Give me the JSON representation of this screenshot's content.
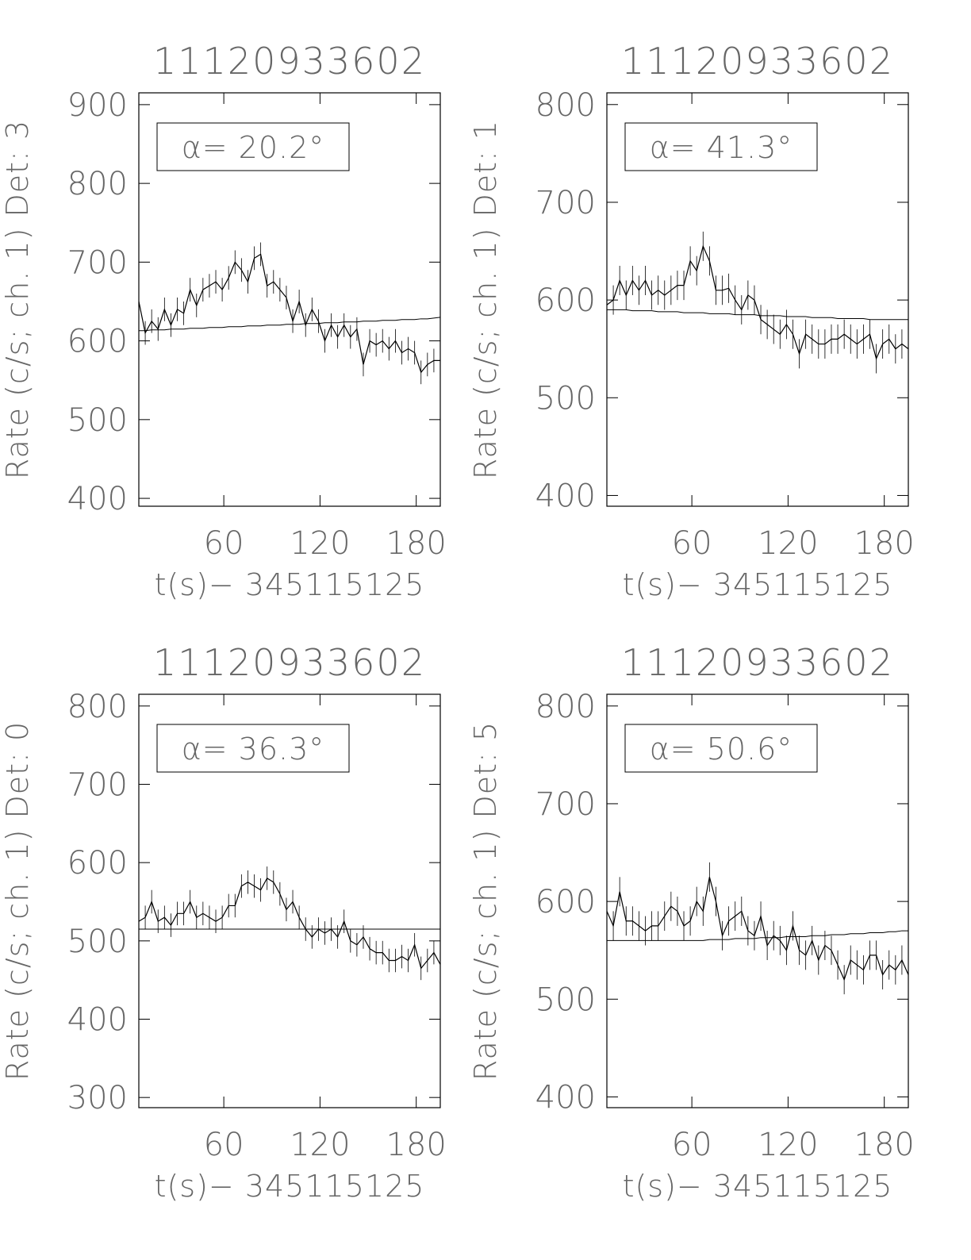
{
  "chart_data": [
    {
      "type": "line",
      "title": "11120933602",
      "xlabel": "t(s)− 345115125",
      "ylabel": "Rate (c/s; ch. 1) Det: 3",
      "annotation": "α= 20.2°",
      "color": "#000000",
      "x": [
        7,
        11,
        15,
        19,
        23,
        27,
        31,
        35,
        39,
        43,
        47,
        51,
        55,
        59,
        63,
        67,
        71,
        75,
        79,
        83,
        87,
        91,
        95,
        99,
        103,
        107,
        111,
        115,
        119,
        123,
        127,
        131,
        135,
        139,
        143,
        147,
        151,
        155,
        159,
        163,
        167,
        171,
        175,
        179,
        183,
        187,
        191,
        195
      ],
      "values": [
        650,
        610,
        625,
        615,
        640,
        620,
        640,
        635,
        665,
        645,
        665,
        670,
        675,
        665,
        680,
        700,
        690,
        675,
        705,
        710,
        670,
        675,
        665,
        655,
        625,
        650,
        620,
        640,
        625,
        600,
        620,
        605,
        620,
        605,
        615,
        570,
        600,
        595,
        600,
        590,
        600,
        585,
        590,
        585,
        560,
        570,
        575,
        575
      ],
      "error": 15,
      "fit": [
        613,
        613,
        614,
        614,
        614,
        615,
        615,
        615,
        616,
        616,
        616,
        617,
        617,
        617,
        618,
        618,
        618,
        619,
        619,
        619,
        620,
        620,
        620,
        621,
        621,
        621,
        622,
        622,
        622,
        623,
        623,
        623,
        624,
        624,
        624,
        625,
        625,
        625,
        626,
        626,
        626,
        627,
        627,
        627,
        628,
        628,
        629,
        630
      ],
      "xlim": [
        7,
        195
      ],
      "ylim": [
        390,
        915
      ],
      "xticks": [
        60,
        120,
        180
      ],
      "yticks": [
        400,
        500,
        600,
        700,
        800,
        900
      ]
    },
    {
      "type": "line",
      "title": "11120933602",
      "xlabel": "t(s)− 345115125",
      "ylabel": "Rate (c/s; ch. 1) Det: 1",
      "annotation": "α= 41.3°",
      "color": "#000000",
      "x": [
        7,
        11,
        15,
        19,
        23,
        27,
        31,
        35,
        39,
        43,
        47,
        51,
        55,
        59,
        63,
        67,
        71,
        75,
        79,
        83,
        87,
        91,
        95,
        99,
        103,
        107,
        111,
        115,
        119,
        123,
        127,
        131,
        135,
        139,
        143,
        147,
        151,
        155,
        159,
        163,
        167,
        171,
        175,
        179,
        183,
        187,
        191,
        195
      ],
      "values": [
        595,
        600,
        620,
        605,
        620,
        610,
        620,
        605,
        610,
        605,
        610,
        615,
        615,
        640,
        630,
        655,
        640,
        610,
        610,
        612,
        600,
        590,
        605,
        600,
        580,
        575,
        570,
        565,
        575,
        565,
        545,
        565,
        560,
        555,
        555,
        560,
        560,
        565,
        560,
        555,
        560,
        565,
        540,
        555,
        560,
        550,
        555,
        550
      ],
      "error": 15,
      "fit": [
        590,
        590,
        590,
        590,
        589,
        589,
        589,
        589,
        588,
        588,
        588,
        588,
        587,
        587,
        587,
        587,
        586,
        586,
        586,
        586,
        585,
        585,
        585,
        585,
        584,
        584,
        584,
        584,
        583,
        583,
        583,
        583,
        582,
        582,
        582,
        582,
        581,
        581,
        581,
        581,
        581,
        580,
        580,
        580,
        580,
        580,
        580,
        580
      ],
      "xlim": [
        7,
        195
      ],
      "ylim": [
        389,
        812
      ],
      "xticks": [
        60,
        120,
        180
      ],
      "yticks": [
        400,
        500,
        600,
        700,
        800
      ]
    },
    {
      "type": "line",
      "title": "11120933602",
      "xlabel": "t(s)− 345115125",
      "ylabel": "Rate (c/s; ch. 1) Det: 0",
      "annotation": "α= 36.3°",
      "color": "#000000",
      "x": [
        7,
        11,
        15,
        19,
        23,
        27,
        31,
        35,
        39,
        43,
        47,
        51,
        55,
        59,
        63,
        67,
        71,
        75,
        79,
        83,
        87,
        91,
        95,
        99,
        103,
        107,
        111,
        115,
        119,
        123,
        127,
        131,
        135,
        139,
        143,
        147,
        151,
        155,
        159,
        163,
        167,
        171,
        175,
        179,
        183,
        187,
        191,
        195
      ],
      "values": [
        525,
        530,
        550,
        525,
        530,
        520,
        535,
        535,
        550,
        530,
        535,
        530,
        525,
        530,
        545,
        545,
        570,
        575,
        570,
        565,
        580,
        575,
        560,
        540,
        550,
        530,
        515,
        505,
        515,
        510,
        515,
        505,
        525,
        500,
        495,
        505,
        490,
        485,
        485,
        475,
        475,
        480,
        475,
        495,
        465,
        475,
        485,
        470
      ],
      "error": 15,
      "fit": [
        515,
        515,
        515,
        515,
        515,
        515,
        515,
        515,
        515,
        515,
        515,
        515,
        515,
        515,
        515,
        515,
        515,
        515,
        515,
        515,
        515,
        515,
        515,
        515,
        515,
        515,
        515,
        515,
        515,
        515,
        515,
        515,
        515,
        515,
        515,
        515,
        515,
        515,
        515,
        515,
        515,
        515,
        515,
        515,
        515,
        515,
        515,
        515
      ],
      "xlim": [
        7,
        195
      ],
      "ylim": [
        287,
        815
      ],
      "xticks": [
        60,
        120,
        180
      ],
      "yticks": [
        300,
        400,
        500,
        600,
        700,
        800
      ]
    },
    {
      "type": "line",
      "title": "11120933602",
      "xlabel": "t(s)− 345115125",
      "ylabel": "Rate (c/s; ch. 1) Det: 5",
      "annotation": "α= 50.6°",
      "color": "#000000",
      "x": [
        7,
        11,
        15,
        19,
        23,
        27,
        31,
        35,
        39,
        43,
        47,
        51,
        55,
        59,
        63,
        67,
        71,
        75,
        79,
        83,
        87,
        91,
        95,
        99,
        103,
        107,
        111,
        115,
        119,
        123,
        127,
        131,
        135,
        139,
        143,
        147,
        151,
        155,
        159,
        163,
        167,
        171,
        175,
        179,
        183,
        187,
        191,
        195
      ],
      "values": [
        590,
        575,
        610,
        580,
        580,
        575,
        570,
        575,
        575,
        585,
        595,
        590,
        575,
        580,
        600,
        590,
        625,
        600,
        565,
        580,
        585,
        590,
        570,
        565,
        585,
        555,
        565,
        560,
        550,
        575,
        550,
        545,
        560,
        540,
        555,
        550,
        535,
        520,
        540,
        535,
        530,
        545,
        545,
        525,
        535,
        530,
        540,
        525
      ],
      "error": 15,
      "fit": [
        560,
        560,
        560,
        560,
        560,
        560,
        560,
        560,
        560,
        560,
        560,
        560,
        560,
        560,
        560,
        560,
        561,
        561,
        561,
        561,
        562,
        562,
        562,
        562,
        563,
        563,
        563,
        563,
        564,
        564,
        564,
        564,
        565,
        565,
        565,
        566,
        566,
        566,
        567,
        567,
        567,
        568,
        568,
        568,
        569,
        569,
        570,
        570
      ],
      "xlim": [
        7,
        195
      ],
      "ylim": [
        389,
        812
      ],
      "xticks": [
        60,
        120,
        180
      ],
      "yticks": [
        400,
        500,
        600,
        700,
        800
      ]
    }
  ]
}
